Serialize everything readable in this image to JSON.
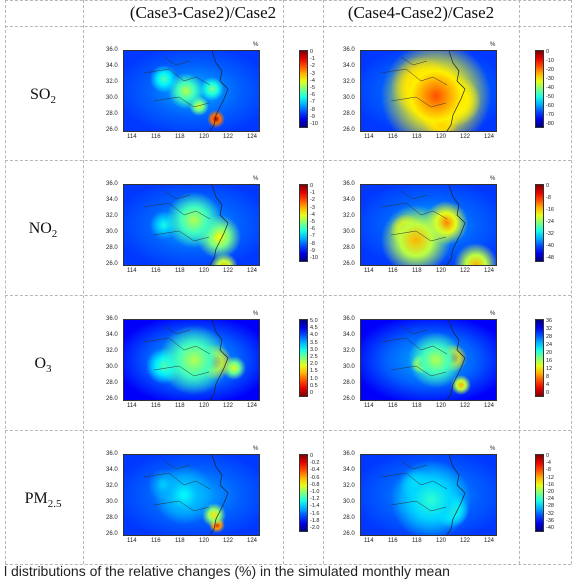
{
  "headers": [
    "(Case3-Case2)/Case2",
    "(Case4-Case2)/Case2"
  ],
  "rows": [
    {
      "species": "SO",
      "sub": "2",
      "left_ticks": [
        "0",
        "-1",
        "-2",
        "-3",
        "-4",
        "-5",
        "-6",
        "-7",
        "-8",
        "-9",
        "-10"
      ],
      "right_ticks": [
        "0",
        "-10",
        "-20",
        "-30",
        "-40",
        "-50",
        "-60",
        "-70",
        "-80"
      ]
    },
    {
      "species": "NO",
      "sub": "2",
      "left_ticks": [
        "0",
        "-1",
        "-2",
        "-3",
        "-4",
        "-5",
        "-6",
        "-7",
        "-8",
        "-9",
        "-10"
      ],
      "right_ticks": [
        "0",
        "-8",
        "-16",
        "-24",
        "-32",
        "-40",
        "-48"
      ]
    },
    {
      "species": "O",
      "sub": "3",
      "left_ticks": [
        "5.0",
        "4.5",
        "4.0",
        "3.5",
        "3.0",
        "2.5",
        "2.0",
        "1.5",
        "1.0",
        "0.5",
        "0"
      ],
      "right_ticks": [
        "36",
        "32",
        "28",
        "24",
        "20",
        "16",
        "12",
        "8",
        "4",
        "0"
      ]
    },
    {
      "species": "PM",
      "sub": "2.5",
      "left_ticks": [
        "0",
        "-0.2",
        "-0.4",
        "-0.6",
        "-0.8",
        "-1.0",
        "-1.2",
        "-1.4",
        "-1.6",
        "-1.8",
        "-2.0"
      ],
      "right_ticks": [
        "0",
        "-4",
        "-8",
        "-12",
        "-16",
        "-20",
        "-24",
        "-28",
        "-32",
        "-36",
        "-40"
      ]
    }
  ],
  "map_axes": {
    "y_ticks": [
      "36.0",
      "34.0",
      "32.0",
      "30.0",
      "28.0",
      "26.0"
    ],
    "x_ticks": [
      "114",
      "116",
      "118",
      "120",
      "122",
      "124"
    ],
    "unit": "%"
  },
  "caption": "l distributions of the relative changes (%) in the simulated monthly mean"
}
